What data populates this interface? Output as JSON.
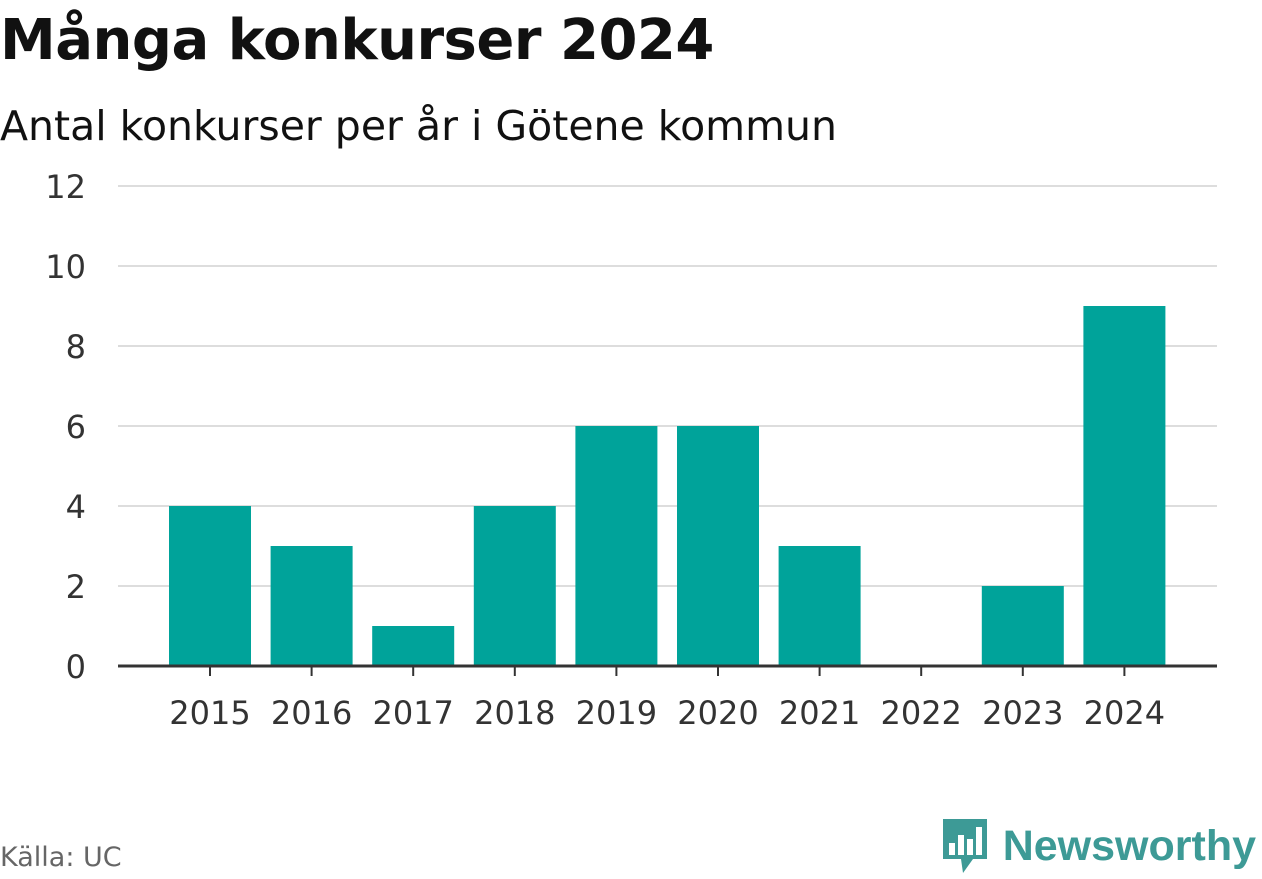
{
  "header": {
    "title": "Många konkurser 2024",
    "subtitle": "Antal konkurser per år i Götene kommun"
  },
  "footer": {
    "source": "Källa: UC",
    "brand": "Newsworthy",
    "brand_logo_icon": "newsworthy-logo-icon"
  },
  "colors": {
    "bar": "#00a39a",
    "grid": "#dddddd",
    "axis": "#333333",
    "brand": "#3d9a96"
  },
  "chart_data": {
    "type": "bar",
    "title": "Många konkurser 2024",
    "subtitle": "Antal konkurser per år i Götene kommun",
    "categories": [
      "2015",
      "2016",
      "2017",
      "2018",
      "2019",
      "2020",
      "2021",
      "2022",
      "2023",
      "2024"
    ],
    "values": [
      4,
      3,
      1,
      4,
      6,
      6,
      3,
      0,
      2,
      9
    ],
    "ylim": [
      0,
      12
    ],
    "yticks": [
      0,
      2,
      4,
      6,
      8,
      10,
      12
    ],
    "xlabel": "",
    "ylabel": "",
    "grid": true,
    "legend": "none"
  }
}
